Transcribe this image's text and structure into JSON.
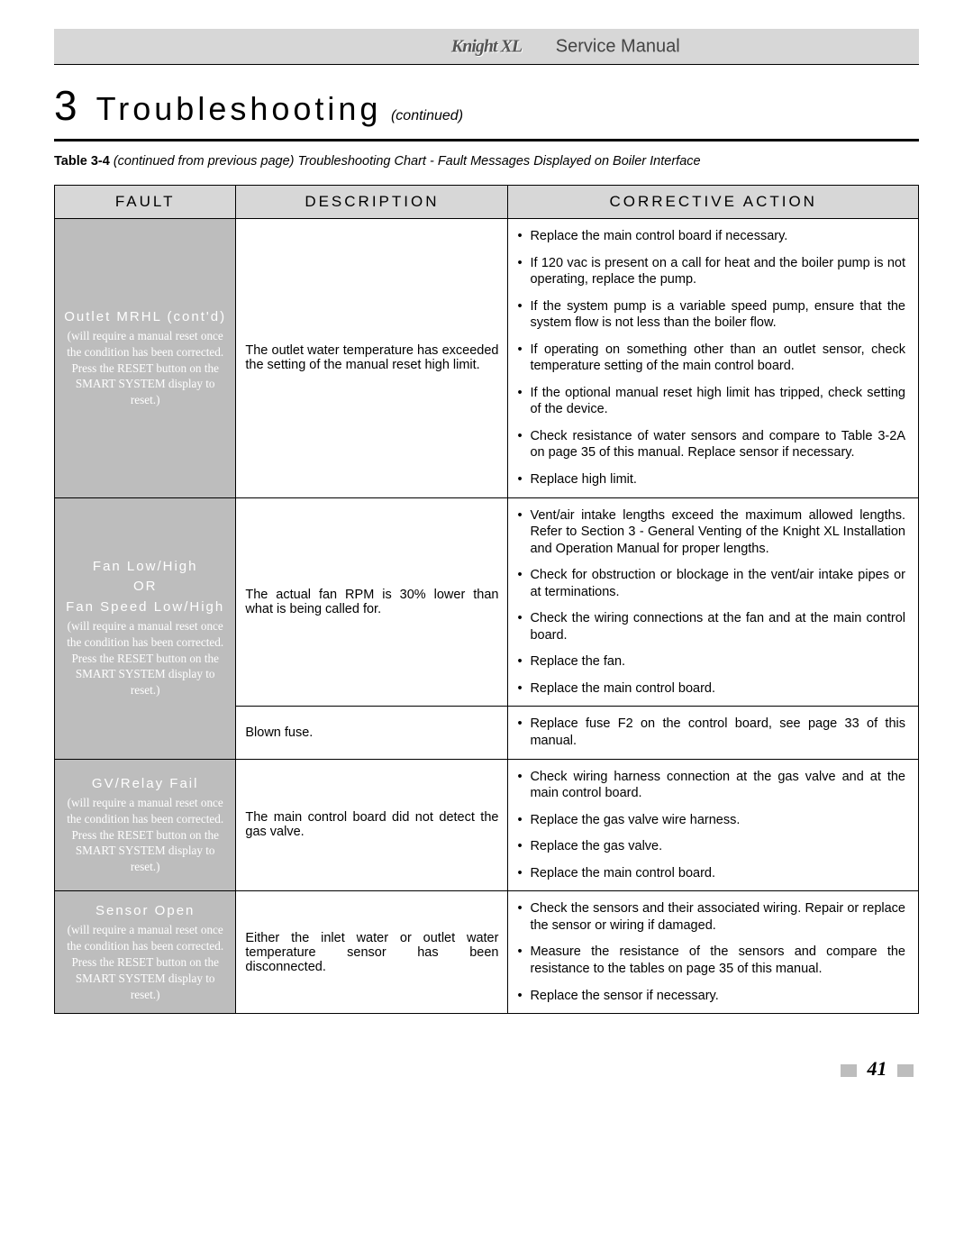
{
  "header": {
    "logo_text": "Knight XL",
    "manual_title": "Service Manual"
  },
  "section": {
    "number": "3",
    "title": "Troubleshooting",
    "continued": "(continued)"
  },
  "caption": {
    "label": "Table 3-4",
    "text": "(continued from previous page) Troubleshooting Chart - Fault Messages Displayed on Boiler Interface"
  },
  "table": {
    "headers": {
      "fault": "FAULT",
      "description": "DESCRIPTION",
      "action": "CORRECTIVE ACTION"
    },
    "header_bg": "#d7d7d7",
    "fault_bg": "#bdbdbd",
    "reset_note": "(will require a manual reset once the condition has been corrected.  Press the RESET button on the SMART SYSTEM display to reset.)",
    "rows": [
      {
        "fault_name": "Outlet MRHL (cont'd)",
        "description": "The outlet water temperature has exceeded the setting of the manual reset high limit.",
        "actions": [
          "Replace the main control board if necessary.",
          "If 120 vac is present on a call for heat and the boiler pump is not operating, replace the pump.",
          "If the system pump is a variable speed pump, ensure that the system flow is not less than the boiler flow.",
          "If operating on something other than an outlet sensor, check temperature setting of the main control board.",
          "If the optional manual reset high limit has tripped, check setting of the device.",
          "Check resistance of water sensors and compare to Table 3-2A on page 35 of this manual.  Replace sensor if necessary.",
          "Replace high limit."
        ]
      },
      {
        "fault_name_line1": "Fan Low/High",
        "fault_name_line2": "OR",
        "fault_name_line3": "Fan Speed Low/High",
        "description": "The actual fan RPM is 30% lower than what is being called for.",
        "actions": [
          "Vent/air intake lengths exceed the maximum allowed lengths.  Refer to Section 3 - General Venting of the Knight XL Installation and Operation Manual for proper lengths.",
          "Check for obstruction or blockage in the vent/air intake pipes or at terminations.",
          "Check the wiring connections at the fan and at the main control board.",
          "Replace the fan.",
          "Replace the main control board."
        ],
        "sub": {
          "description": "Blown fuse.",
          "actions": [
            "Replace fuse F2 on the control board, see page 33 of this manual."
          ]
        }
      },
      {
        "fault_name": "GV/Relay Fail",
        "description": "The main control board did not detect the gas valve.",
        "actions": [
          "Check wiring harness connection at the gas valve and at the main control board.",
          "Replace the gas valve wire harness.",
          "Replace the gas valve.",
          "Replace the main control board."
        ]
      },
      {
        "fault_name": "Sensor Open",
        "description": "Either the inlet water or outlet water temperature sensor has been disconnected.",
        "actions": [
          "Check the sensors and their associated wiring.  Repair or replace the sensor or wiring if damaged.",
          "Measure the resistance of the sensors and compare the resistance to the tables on page 35 of this manual.",
          "Replace the sensor if necessary."
        ]
      }
    ]
  },
  "footer": {
    "page_number": "41"
  }
}
